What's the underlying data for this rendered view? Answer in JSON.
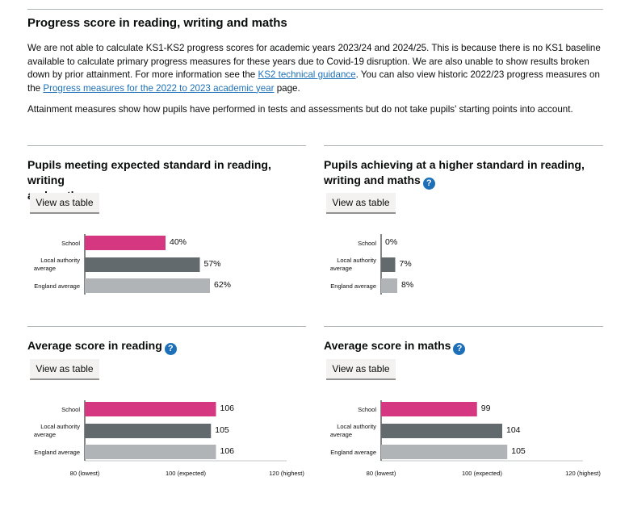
{
  "intro": {
    "title": "Progress score in reading, writing and maths",
    "para1_before": "We are not able to calculate KS1-KS2 progress scores for academic years 2023/24 and 2024/25. This is because there is no KS1 baseline available to calculate primary progress measures for these years due to Covid-19 disruption. We are also unable to show results broken down by prior attainment. For more information see the ",
    "para1_link1": "KS2 technical guidance",
    "para1_middle": ". You can also view historic 2022/23 progress measures on the ",
    "para1_link2": "Progress measures for the 2022 to 2023 academic year",
    "para1_after": " page.",
    "para2": "Attainment measures show how pupils have performed in tests and assessments but do not take pupils' starting points into account."
  },
  "help_icon": "?",
  "button_label": "View as table",
  "colors": {
    "school": "#d53880",
    "local_authority": "#626a6e",
    "england": "#b1b4b6",
    "link": "#1d70b8"
  },
  "panels": [
    {
      "title_line1": "Pupils meeting expected standard in reading, writing",
      "title_line2": "and maths"
    },
    {
      "title_line1": "Pupils achieving at a higher standard in reading,",
      "title_line2": "writing and maths"
    },
    {
      "title_line1": "Average score in reading",
      "title_line2": ""
    },
    {
      "title_line1": "Average score in maths",
      "title_line2": ""
    }
  ],
  "chart_data": [
    {
      "type": "bar",
      "orientation": "horizontal",
      "categories": [
        "School",
        "Local authority average",
        "England average"
      ],
      "values": [
        40,
        57,
        62
      ],
      "value_labels": [
        "40%",
        "57%",
        "62%"
      ],
      "xlim": [
        0,
        100
      ],
      "tick_labels": []
    },
    {
      "type": "bar",
      "orientation": "horizontal",
      "categories": [
        "School",
        "Local authority average",
        "England average"
      ],
      "values": [
        0,
        7,
        8
      ],
      "value_labels": [
        "0%",
        "7%",
        "8%"
      ],
      "xlim": [
        0,
        100
      ],
      "tick_labels": []
    },
    {
      "type": "bar",
      "orientation": "horizontal",
      "categories": [
        "School",
        "Local authority average",
        "England average"
      ],
      "values": [
        106,
        105,
        106
      ],
      "value_labels": [
        "106",
        "105",
        "106"
      ],
      "xlim": [
        80,
        120
      ],
      "ticks": [
        80,
        100,
        120
      ],
      "tick_labels": [
        "80 (lowest)",
        "100 (expected)",
        "120 (highest)"
      ]
    },
    {
      "type": "bar",
      "orientation": "horizontal",
      "categories": [
        "School",
        "Local authority average",
        "England average"
      ],
      "values": [
        99,
        104,
        105
      ],
      "value_labels": [
        "99",
        "104",
        "105"
      ],
      "xlim": [
        80,
        120
      ],
      "ticks": [
        80,
        100,
        120
      ],
      "tick_labels": [
        "80 (lowest)",
        "100 (expected)",
        "120 (highest)"
      ]
    }
  ]
}
